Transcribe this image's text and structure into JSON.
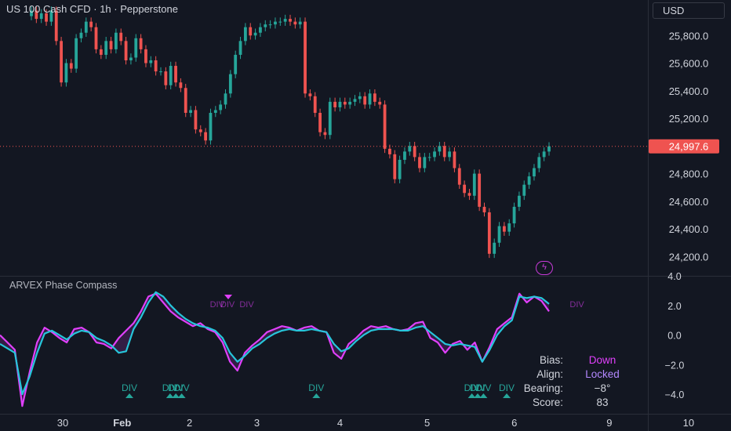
{
  "header": {
    "title": "US 100 Cash CFD · 1h · Pepperstone",
    "currency": "USD"
  },
  "colors": {
    "background": "#131722",
    "up": "#26a69a",
    "down": "#ef5350",
    "fast_line": "#e040fb",
    "slow_line": "#26c6da",
    "div_marker": "#26a69a",
    "bear_marker": "#e040fb",
    "grid": "#1e222d",
    "axis_text": "#d1d4dc"
  },
  "price_axis": {
    "ticks": [
      "25,800.0",
      "25,600.0",
      "25,400.0",
      "25,200.0",
      "24,800.0",
      "24,600.0",
      "24,400.0",
      "24,200.0"
    ],
    "tick_values": [
      25800,
      25600,
      25400,
      25200,
      24800,
      24600,
      24400,
      24200
    ],
    "current_price": 24997.6,
    "current_label": "24,997.6"
  },
  "indicator": {
    "title": "ARVEX Phase Compass",
    "axis_ticks": [
      "4.0",
      "2.0",
      "0.0",
      "−2.0",
      "−4.0"
    ],
    "axis_values": [
      4,
      2,
      0,
      -2,
      -4
    ],
    "div_label": "DIV",
    "bolt_icon": "bolt-icon",
    "table": {
      "rows": [
        {
          "label": "Bias:",
          "value": "Down",
          "color": "#e040fb"
        },
        {
          "label": "Align:",
          "value": "Locked",
          "color": "#b388ff"
        },
        {
          "label": "Bearing:",
          "value": "−8°",
          "color": "#d1d4dc"
        },
        {
          "label": "Score:",
          "value": "83",
          "color": "#d1d4dc"
        }
      ]
    }
  },
  "time_axis": {
    "labels": [
      "30",
      "Feb",
      "2",
      "3",
      "4",
      "5",
      "6",
      "9",
      "10"
    ],
    "label_positions": [
      0,
      7.5,
      16,
      24.5,
      35,
      46,
      57,
      69,
      79
    ]
  },
  "chart_data": {
    "type": "candlestick",
    "x_unit": "hourly bars (index)",
    "price_ylim": [
      24100,
      26000
    ],
    "close": [
      25980,
      25920,
      25960,
      25900,
      25980,
      25760,
      25460,
      25600,
      25560,
      25780,
      25820,
      25900,
      25860,
      25700,
      25660,
      25760,
      25700,
      25820,
      25760,
      25620,
      25640,
      25780,
      25700,
      25600,
      25620,
      25540,
      25540,
      25440,
      25580,
      25460,
      25420,
      25240,
      25260,
      25120,
      25100,
      25040,
      25240,
      25260,
      25300,
      25380,
      25520,
      25660,
      25760,
      25860,
      25800,
      25820,
      25860,
      25880,
      25880,
      25900,
      25900,
      25920,
      25900,
      25880,
      25900,
      25380,
      25360,
      25240,
      25100,
      25080,
      25320,
      25280,
      25320,
      25300,
      25320,
      25340,
      25360,
      25300,
      25380,
      25320,
      25300,
      24980,
      24940,
      24760,
      24900,
      24960,
      25000,
      24920,
      24840,
      24920,
      24920,
      24960,
      25000,
      24920,
      24960,
      24840,
      24720,
      24660,
      24640,
      24800,
      24560,
      24520,
      24220,
      24300,
      24420,
      24380,
      24440,
      24560,
      24640,
      24720,
      24780,
      24840,
      24920,
      24960,
      24997.6
    ],
    "open": [
      25940,
      25980,
      25920,
      25960,
      25900,
      25980,
      25760,
      25460,
      25600,
      25560,
      25780,
      25820,
      25900,
      25860,
      25700,
      25660,
      25760,
      25700,
      25820,
      25760,
      25620,
      25640,
      25780,
      25700,
      25600,
      25620,
      25540,
      25540,
      25440,
      25580,
      25460,
      25420,
      25240,
      25260,
      25120,
      25100,
      25040,
      25240,
      25260,
      25300,
      25380,
      25520,
      25660,
      25760,
      25860,
      25800,
      25820,
      25860,
      25880,
      25880,
      25900,
      25900,
      25920,
      25900,
      25880,
      25900,
      25380,
      25360,
      25240,
      25100,
      25080,
      25320,
      25280,
      25320,
      25300,
      25320,
      25340,
      25360,
      25300,
      25380,
      25320,
      25300,
      24980,
      24940,
      24760,
      24900,
      24960,
      25000,
      24920,
      24840,
      24920,
      24920,
      24960,
      25000,
      24920,
      24960,
      24840,
      24720,
      24660,
      24640,
      24800,
      24560,
      24520,
      24220,
      24300,
      24420,
      24380,
      24440,
      24560,
      24640,
      24720,
      24780,
      24840,
      24920,
      24960
    ],
    "indicator_ylim": [
      -5,
      4
    ],
    "fast": [
      0,
      -0.5,
      -1,
      -4.8,
      -2.5,
      -0.5,
      0.5,
      0.2,
      -0.2,
      -0.5,
      0.4,
      0.5,
      0.2,
      -0.5,
      -0.6,
      -0.9,
      -0.2,
      0.3,
      0.8,
      1.6,
      2.6,
      2.8,
      2.2,
      1.6,
      1.2,
      0.9,
      0.6,
      0.8,
      0.4,
      0.2,
      -0.5,
      -1.8,
      -2.4,
      -1.2,
      -0.7,
      -0.3,
      0.2,
      0.4,
      0.6,
      0.5,
      0.3,
      0.5,
      0.6,
      0.3,
      0.2,
      -1.2,
      -1.6,
      -0.6,
      -0.2,
      0.3,
      0.6,
      0.5,
      0.6,
      0.4,
      0.3,
      0.4,
      0.8,
      0.9,
      -0.2,
      -0.5,
      -1.2,
      -0.6,
      -0.4,
      -1.0,
      -0.5,
      -1.8,
      -0.8,
      0.4,
      0.8,
      1.2,
      2.8,
      2.2,
      2.6,
      2.3,
      1.6
    ],
    "slow": [
      -0.6,
      -0.9,
      -1.2,
      -4.0,
      -2.8,
      -1.2,
      0.1,
      0.3,
      0.0,
      -0.3,
      0.1,
      0.3,
      0.2,
      -0.2,
      -0.4,
      -0.7,
      -1.2,
      -1.1,
      0.4,
      1.2,
      2.2,
      2.9,
      2.6,
      2.0,
      1.5,
      1.1,
      0.8,
      0.6,
      0.5,
      0.3,
      -0.2,
      -1.2,
      -1.8,
      -1.4,
      -0.9,
      -0.6,
      -0.2,
      0.1,
      0.3,
      0.4,
      0.3,
      0.3,
      0.4,
      0.3,
      0.2,
      -0.6,
      -1.1,
      -0.9,
      -0.4,
      0.0,
      0.3,
      0.4,
      0.4,
      0.4,
      0.3,
      0.3,
      0.5,
      0.6,
      0.2,
      -0.2,
      -0.6,
      -0.7,
      -0.6,
      -0.7,
      -0.8,
      -1.8,
      -1.0,
      0.0,
      0.6,
      1.0,
      2.6,
      2.5,
      2.6,
      2.5,
      2.1
    ],
    "div_markers": [
      22.3,
      29.3,
      30.3,
      31.3,
      54.5,
      81.3,
      82.3,
      83.3,
      87.3
    ],
    "bear_markers": [
      37.4,
      39.2,
      42.5,
      99.4
    ]
  }
}
